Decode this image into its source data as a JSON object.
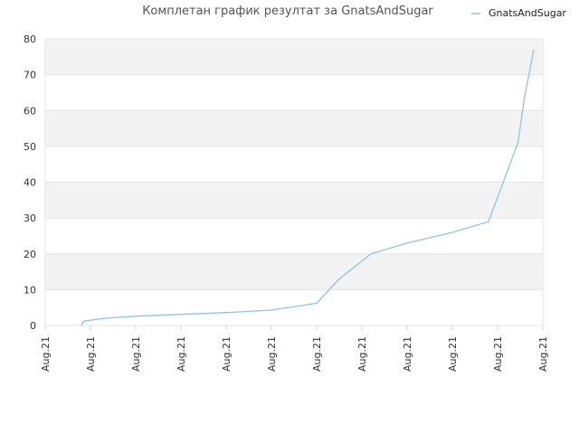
{
  "chart_data": {
    "type": "line",
    "title": "Комплетан график резултат за GnatsAndSugar",
    "xlabel": "",
    "ylabel": "",
    "ylim": [
      0,
      80
    ],
    "yticks": [
      0,
      10,
      20,
      30,
      40,
      50,
      60,
      70,
      80
    ],
    "xtick_labels": [
      "Aug.21",
      "Aug.21",
      "Aug.21",
      "Aug.21",
      "Aug.21",
      "Aug.21",
      "Aug.21",
      "Aug.21",
      "Aug.21",
      "Aug.21",
      "Aug.21",
      "Aug.21"
    ],
    "xlim": [
      0,
      11
    ],
    "grid": "horizontal alternating bands",
    "legend": "top-right",
    "series": [
      {
        "name": "GnatsAndSugar",
        "color": "#8ec4ea",
        "x": [
          0.8,
          0.85,
          1.3,
          2.0,
          3.0,
          4.0,
          5.0,
          6.0,
          6.5,
          7.2,
          8.0,
          9.0,
          9.8,
          10.45,
          10.6,
          10.8
        ],
        "y": [
          0,
          1.2,
          2.0,
          2.6,
          3.1,
          3.6,
          4.3,
          6.2,
          13.0,
          20.0,
          23.0,
          26.0,
          29.0,
          51.0,
          64.0,
          77.0
        ]
      }
    ]
  }
}
